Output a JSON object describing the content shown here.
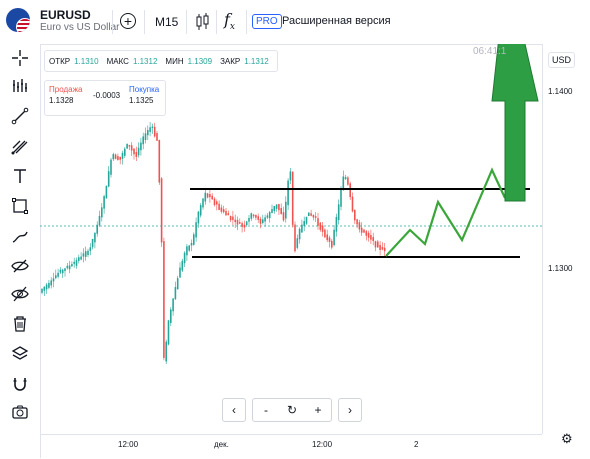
{
  "header": {
    "symbol": "EURUSD",
    "symbol_desc": "Euro vs US Dollar",
    "interval": "M15",
    "pro_badge": "PRO",
    "pro_text": "Расширенная версия",
    "fx_label": "f",
    "fx_sub": "x",
    "add_symbol": "+"
  },
  "ohlc": {
    "open_label": "ОТКР",
    "open": "1.1310",
    "high_label": "МАКС",
    "high": "1.1312",
    "low_label": "МИН",
    "low": "1.1309",
    "close_label": "ЗАКР",
    "close": "1.1312"
  },
  "quote": {
    "sell_label": "Продажа",
    "sell": "1.1328",
    "change": "-0.0003",
    "buy_label": "Покупка",
    "buy": "1.1325"
  },
  "clock": "06:41:1",
  "price_scale": {
    "currency": "USD",
    "labels": [
      "1.1400",
      "1.1300"
    ]
  },
  "time_scale": {
    "labels": [
      "12:00",
      "дек.",
      "12:00",
      "2"
    ]
  },
  "nav": {
    "back": "‹",
    "minus": "-",
    "reset": "↻",
    "plus": "+",
    "forward": "›"
  },
  "colors": {
    "up": "#26a69a",
    "down": "#ef5350",
    "annotation": "#3aa63a",
    "big_arrow": "#2e9e45"
  },
  "left_tools": [
    "crosshair-icon",
    "indicators-icon",
    "trendline-icon",
    "pitchfork-icon",
    "text-icon",
    "rectangle-icon",
    "brush-icon",
    "eye-slash-icon",
    "eye-off-icon",
    "trash-icon",
    "layers-icon",
    "magnet-icon",
    "camera-icon"
  ]
}
